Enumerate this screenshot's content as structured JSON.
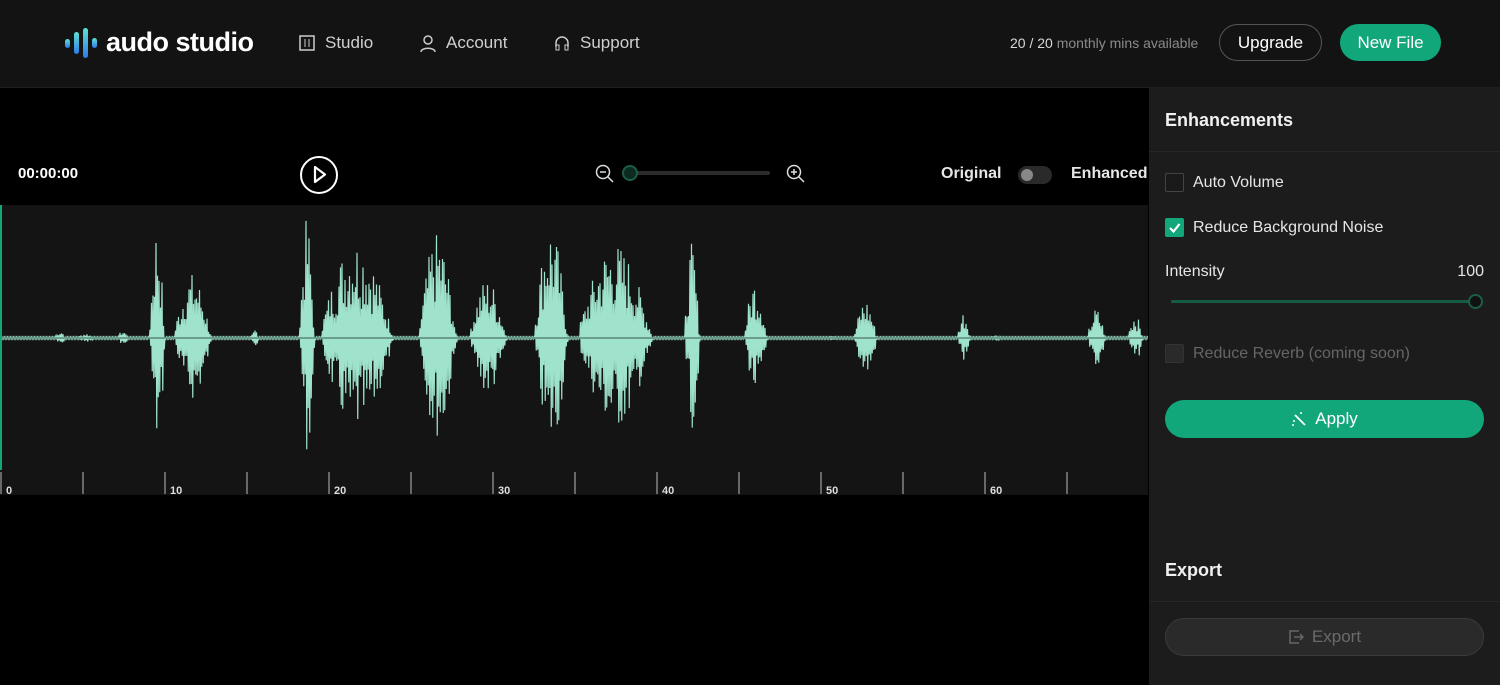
{
  "header": {
    "brand": "audo studio",
    "nav": [
      {
        "label": "Studio",
        "icon": "sliders-icon"
      },
      {
        "label": "Account",
        "icon": "user-icon"
      },
      {
        "label": "Support",
        "icon": "headphones-icon"
      }
    ],
    "mins_count": "20 / 20",
    "mins_text": "monthly mins available",
    "upgrade_label": "Upgrade",
    "new_file_label": "New File"
  },
  "player": {
    "time": "00:00:00",
    "zoom_level": 0,
    "original_label": "Original",
    "enhanced_label": "Enhanced",
    "enhanced_on": false
  },
  "timeline": {
    "labels": [
      "0",
      "10",
      "20",
      "30",
      "40",
      "50",
      "60"
    ]
  },
  "enhancements": {
    "title": "Enhancements",
    "auto_volume": {
      "label": "Auto Volume",
      "checked": false
    },
    "reduce_noise": {
      "label": "Reduce Background Noise",
      "checked": true
    },
    "intensity_label": "Intensity",
    "intensity_value": "100",
    "reduce_reverb": {
      "label": "Reduce Reverb (coming soon)",
      "checked": false,
      "disabled": true
    },
    "apply_label": "Apply"
  },
  "export": {
    "title": "Export",
    "button_label": "Export"
  },
  "colors": {
    "accent": "#12a77b",
    "wave": "#9fe3cc"
  }
}
